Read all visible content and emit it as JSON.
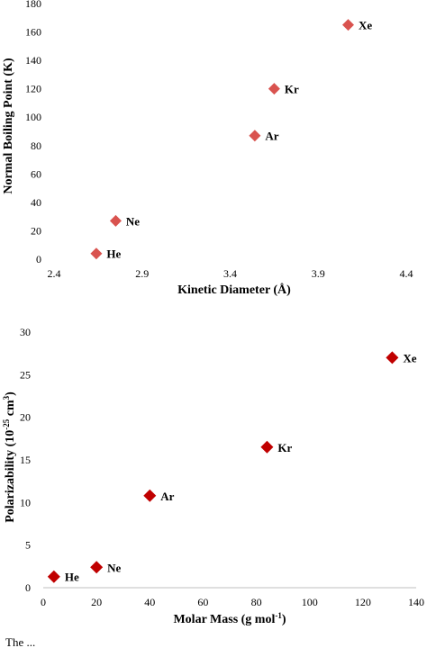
{
  "chart_data": [
    {
      "type": "scatter",
      "xlabel": "Kinetic Diameter (Å)",
      "ylabel": "Normal Boiling Point (K)",
      "xlim": [
        2.4,
        4.4
      ],
      "ylim": [
        0,
        180
      ],
      "xticks": [
        "2.4",
        "2.9",
        "3.4",
        "3.9",
        "4.4"
      ],
      "yticks": [
        "0",
        "20",
        "40",
        "60",
        "80",
        "100",
        "120",
        "140",
        "160",
        "180"
      ],
      "grid": false,
      "marker": "diamond",
      "color": "#d9534f",
      "points": [
        {
          "label": "He",
          "x": 2.64,
          "y": 4
        },
        {
          "label": "Ne",
          "x": 2.75,
          "y": 27
        },
        {
          "label": "Ar",
          "x": 3.54,
          "y": 87
        },
        {
          "label": "Kr",
          "x": 3.65,
          "y": 120
        },
        {
          "label": "Xe",
          "x": 4.07,
          "y": 165
        }
      ]
    },
    {
      "type": "scatter",
      "xlabel": "Molar Mass (g mol-1)",
      "ylabel": "Polarizability (10-25 cm3)",
      "xlim": [
        0,
        140
      ],
      "ylim": [
        0,
        30
      ],
      "xticks": [
        "0",
        "20",
        "40",
        "60",
        "80",
        "100",
        "120",
        "140"
      ],
      "yticks": [
        "0",
        "5",
        "10",
        "15",
        "20",
        "25",
        "30"
      ],
      "grid": false,
      "marker": "diamond",
      "color": "#c00000",
      "points": [
        {
          "label": "He",
          "x": 4,
          "y": 1.3
        },
        {
          "label": "Ne",
          "x": 20,
          "y": 2.4
        },
        {
          "label": "Ar",
          "x": 40,
          "y": 10.8
        },
        {
          "label": "Kr",
          "x": 84,
          "y": 16.5
        },
        {
          "label": "Xe",
          "x": 131,
          "y": 27
        }
      ]
    }
  ],
  "caption": "The ... "
}
